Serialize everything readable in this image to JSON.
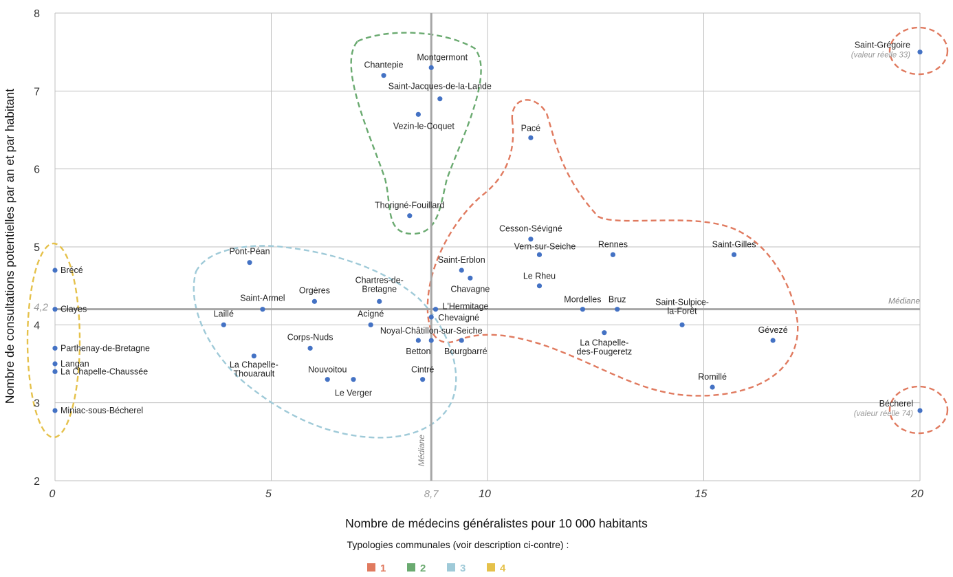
{
  "chart_data": {
    "type": "scatter",
    "xlabel": "Nombre de médecins généralistes pour 10 000 habitants",
    "ylabel": "Nombre de consultations potentielles par an et par habitant",
    "xlim": [
      0,
      20
    ],
    "ylim": [
      2,
      8
    ],
    "xticks": [
      "0",
      "5",
      "10",
      "15",
      "20"
    ],
    "yticks": [
      "2",
      "3",
      "4",
      "5",
      "6",
      "7",
      "8"
    ],
    "grid": true,
    "point_color": "#4472c4",
    "median_x": {
      "value": 8.7,
      "label": "Médiane",
      "tick": "8,7"
    },
    "median_y": {
      "value": 4.2,
      "label": "Médiane",
      "tick": "4,2"
    },
    "points": [
      {
        "name": "Brécé",
        "x": 0,
        "y": 4.7
      },
      {
        "name": "Clayes",
        "x": 0,
        "y": 4.2
      },
      {
        "name": "Parthenay-de-Bretagne",
        "x": 0,
        "y": 3.7
      },
      {
        "name": "Langan",
        "x": 0,
        "y": 3.5
      },
      {
        "name": "La Chapelle-Chaussée",
        "x": 0,
        "y": 3.4
      },
      {
        "name": "Miniac-sous-Bécherel",
        "x": 0,
        "y": 2.9
      },
      {
        "name": "Pont-Péan",
        "x": 4.5,
        "y": 4.8
      },
      {
        "name": "Saint-Armel",
        "x": 4.8,
        "y": 4.2
      },
      {
        "name": "Laillé",
        "x": 3.9,
        "y": 4.0
      },
      {
        "name": "Orgères",
        "x": 6.0,
        "y": 4.3
      },
      {
        "name": "Chartres-de-Bretagne",
        "x": 7.5,
        "y": 4.3
      },
      {
        "name": "Acigné",
        "x": 7.3,
        "y": 4.0
      },
      {
        "name": "Corps-Nuds",
        "x": 5.9,
        "y": 3.7
      },
      {
        "name": "La Chapelle-Thouarault",
        "x": 4.6,
        "y": 3.6
      },
      {
        "name": "Nouvoitou",
        "x": 6.3,
        "y": 3.3
      },
      {
        "name": "Le Verger",
        "x": 6.9,
        "y": 3.3
      },
      {
        "name": "Cintré",
        "x": 8.5,
        "y": 3.3
      },
      {
        "name": "Betton",
        "x": 8.4,
        "y": 3.8
      },
      {
        "name": "Noyal-Châtillon-sur-Seiche",
        "x": 8.7,
        "y": 3.8
      },
      {
        "name": "Bourgbarré",
        "x": 9.4,
        "y": 3.8
      },
      {
        "name": "Chevaigné",
        "x": 8.7,
        "y": 4.1
      },
      {
        "name": "L'Hermitage",
        "x": 8.8,
        "y": 4.2
      },
      {
        "name": "Saint-Erblon",
        "x": 9.4,
        "y": 4.7
      },
      {
        "name": "Chavagne",
        "x": 9.6,
        "y": 4.6
      },
      {
        "name": "Montgermont",
        "x": 8.7,
        "y": 7.3
      },
      {
        "name": "Chantepie",
        "x": 7.6,
        "y": 7.2
      },
      {
        "name": "Saint-Jacques-de-la-Lande",
        "x": 8.9,
        "y": 6.9
      },
      {
        "name": "Vezin-le-Coquet",
        "x": 8.4,
        "y": 6.7
      },
      {
        "name": "Thorigné-Fouillard",
        "x": 8.2,
        "y": 5.4
      },
      {
        "name": "Pacé",
        "x": 11.0,
        "y": 6.4
      },
      {
        "name": "Cesson-Sévigné",
        "x": 11.0,
        "y": 5.1
      },
      {
        "name": "Vern-sur-Seiche",
        "x": 11.2,
        "y": 4.9
      },
      {
        "name": "Rennes",
        "x": 12.9,
        "y": 4.9
      },
      {
        "name": "Saint-Gilles",
        "x": 15.7,
        "y": 4.9
      },
      {
        "name": "Le Rheu",
        "x": 11.2,
        "y": 4.5
      },
      {
        "name": "Mordelles",
        "x": 12.2,
        "y": 4.2
      },
      {
        "name": "Bruz",
        "x": 13.0,
        "y": 4.2
      },
      {
        "name": "Saint-Sulpice-la-Forêt",
        "x": 14.5,
        "y": 4.0
      },
      {
        "name": "La Chapelle-des-Fougeretz",
        "x": 12.7,
        "y": 3.9
      },
      {
        "name": "Gévezé",
        "x": 16.6,
        "y": 3.8
      },
      {
        "name": "Romillé",
        "x": 15.2,
        "y": 3.2
      },
      {
        "name": "Saint-Grégoire",
        "x": 20,
        "y": 7.5,
        "note": "(valeur réelle 33)"
      },
      {
        "name": "Bécherel",
        "x": 20,
        "y": 2.9,
        "note": "(valeur réelle 74)"
      }
    ],
    "legend": {
      "title": "Typologies communales (voir description ci-contre) :",
      "placement": "bottom",
      "items": [
        {
          "label": "1",
          "color": "#e07a5f"
        },
        {
          "label": "2",
          "color": "#6aaa70"
        },
        {
          "label": "3",
          "color": "#9fcad8"
        },
        {
          "label": "4",
          "color": "#e5c14a"
        }
      ]
    }
  }
}
